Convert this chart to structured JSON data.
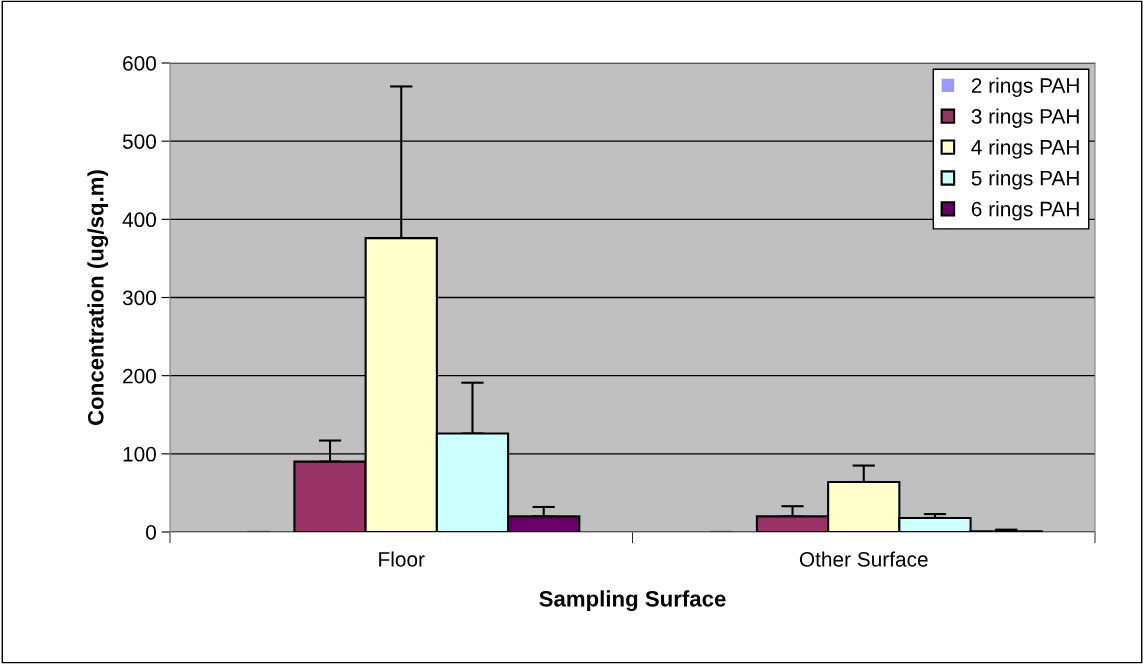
{
  "chart_data": {
    "type": "bar",
    "xlabel": "Sampling Surface",
    "ylabel": "Concentration (ug/sq.m)",
    "categories": [
      "Floor",
      "Other Surface"
    ],
    "series": [
      {
        "name": "2 rings PAH",
        "color": "#9999ff",
        "values": [
          0,
          0
        ],
        "errors": [
          [
            0,
            0
          ],
          [
            0,
            0
          ]
        ]
      },
      {
        "name": "3 rings PAH",
        "color": "#993366",
        "values": [
          90,
          20
        ],
        "errors": [
          [
            90,
            117
          ],
          [
            20,
            33
          ]
        ]
      },
      {
        "name": "4 rings PAH",
        "color": "#ffffcc",
        "values": [
          376,
          64
        ],
        "errors": [
          [
            376,
            570
          ],
          [
            64,
            85
          ]
        ]
      },
      {
        "name": "5 rings PAH",
        "color": "#ccffff",
        "values": [
          126,
          18
        ],
        "errors": [
          [
            126,
            191
          ],
          [
            18,
            23
          ]
        ]
      },
      {
        "name": "6 rings PAH",
        "color": "#660066",
        "values": [
          20,
          1
        ],
        "errors": [
          [
            20,
            32
          ],
          [
            1,
            3
          ]
        ]
      }
    ],
    "ylim": [
      0,
      600
    ],
    "yticks": [
      0,
      100,
      200,
      300,
      400,
      500,
      600
    ],
    "grid": "y",
    "legend": "top right"
  }
}
